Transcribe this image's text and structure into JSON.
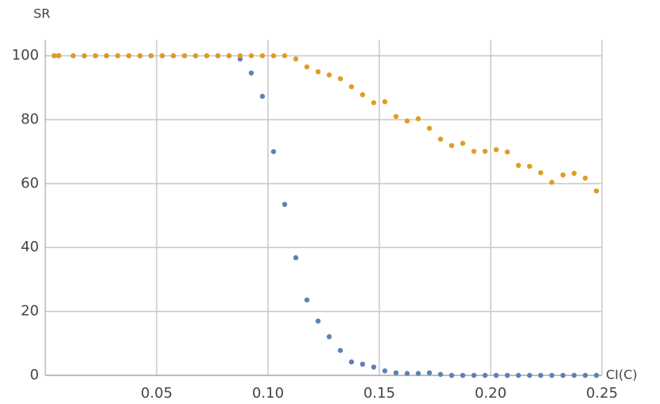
{
  "chart_data": {
    "type": "scatter",
    "x_label": "CI(C)",
    "y_label": "SR",
    "x": [
      0.004,
      0.006,
      0.0125,
      0.0175,
      0.0225,
      0.0275,
      0.0325,
      0.0375,
      0.0425,
      0.0475,
      0.0525,
      0.0575,
      0.0625,
      0.0675,
      0.0725,
      0.0775,
      0.0825,
      0.0875,
      0.0925,
      0.0975,
      0.1025,
      0.1075,
      0.1125,
      0.1175,
      0.1225,
      0.1275,
      0.1325,
      0.1375,
      0.1425,
      0.1475,
      0.1525,
      0.1575,
      0.1625,
      0.1675,
      0.1725,
      0.1775,
      0.1825,
      0.1875,
      0.1925,
      0.1975,
      0.2025,
      0.2075,
      0.2125,
      0.2175,
      0.2225,
      0.2275,
      0.2325,
      0.2375,
      0.2425,
      0.2475
    ],
    "series": [
      {
        "color": "#5e81b5",
        "values": [
          100,
          100,
          100,
          100,
          100,
          100,
          100,
          100,
          100,
          100,
          100,
          100,
          100,
          100,
          100,
          100,
          100,
          99,
          94.6,
          87.3,
          70,
          53.5,
          36.8,
          23.6,
          17,
          12.1,
          7.8,
          4.2,
          3.5,
          2.6,
          1.4,
          0.8,
          0.6,
          0.6,
          0.8,
          0.3,
          0,
          0,
          0,
          0,
          0,
          0,
          0,
          0,
          0,
          0,
          0,
          0,
          0,
          0
        ]
      },
      {
        "color": "#e19c24",
        "values": [
          100,
          100,
          100,
          100,
          100,
          100,
          100,
          100,
          100,
          100,
          100,
          100,
          100,
          100,
          100,
          100,
          100,
          100,
          100,
          100,
          100,
          100,
          99,
          96.5,
          95,
          94,
          92.8,
          90.3,
          87.8,
          85.3,
          85.6,
          81,
          79.6,
          80.3,
          77.3,
          73.9,
          71.9,
          72.6,
          70.1,
          70.1,
          70.6,
          69.9,
          65.7,
          65.4,
          63.4,
          60.4,
          62.7,
          63.2,
          61.7,
          57.7
        ]
      }
    ],
    "xlim": [
      0,
      0.25
    ],
    "ylim": [
      0,
      105
    ],
    "xticks": [
      0.05,
      {
        "value": 0.1,
        "label": "0.10"
      },
      0.15,
      {
        "value": 0.2,
        "label": "0.20"
      },
      0.25
    ],
    "yticks": [
      0,
      20,
      40,
      60,
      80,
      100
    ],
    "grid": true
  }
}
